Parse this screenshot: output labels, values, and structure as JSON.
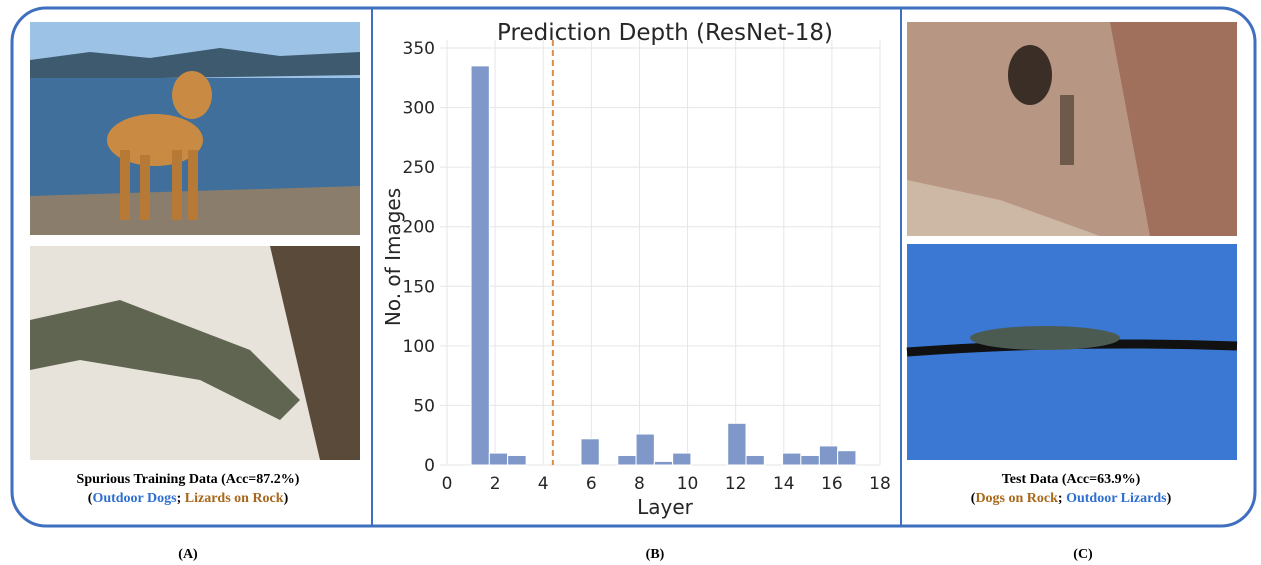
{
  "chart_data": {
    "type": "histogram",
    "title": "Prediction Depth (ResNet-18)",
    "x_label": "Layer",
    "y_label": "No. of Images",
    "bins": [
      1,
      1.76,
      2.52,
      3.29,
      4.05,
      4.81,
      5.57,
      6.33,
      7.1,
      7.86,
      8.62,
      9.38,
      10.14,
      10.9,
      11.67,
      12.43,
      13.19,
      13.95,
      14.71,
      15.48,
      16.24,
      17
    ],
    "values": [
      335,
      10,
      8,
      0,
      0,
      0,
      22,
      0,
      8,
      26,
      3,
      10,
      0,
      0,
      35,
      8,
      0,
      10,
      8,
      16,
      12
    ],
    "color": "#7f97c9",
    "vline": 4.4,
    "vline_color": "#d98e4a",
    "xlim": [
      0,
      18
    ],
    "ylim": [
      0,
      350
    ],
    "xticks": [
      0,
      2,
      4,
      6,
      8,
      10,
      12,
      14,
      16,
      18
    ],
    "yticks": [
      0,
      50,
      100,
      150,
      200,
      250,
      300,
      350
    ],
    "grid": true
  },
  "panels": {
    "left": {
      "title": "Spurious Training Data (Acc=87.2%)",
      "parts": [
        {
          "text": "(",
          "color": "#000000"
        },
        {
          "text": "Outdoor Dogs",
          "color": "#2f6fd0"
        },
        {
          "text": "; ",
          "color": "#000000"
        },
        {
          "text": "Lizards on Rock",
          "color": "#a8671a"
        },
        {
          "text": ")",
          "color": "#000000"
        }
      ],
      "label": "(A)"
    },
    "middle": {
      "label": "(B)"
    },
    "right": {
      "title": "Test Data (Acc=63.9%)",
      "parts": [
        {
          "text": "(",
          "color": "#000000"
        },
        {
          "text": "Dogs on Rock",
          "color": "#a8671a"
        },
        {
          "text": ";  ",
          "color": "#000000"
        },
        {
          "text": "Outdoor Lizards",
          "color": "#2f6fd0"
        },
        {
          "text": ")",
          "color": "#000000"
        }
      ],
      "label": "(C)"
    }
  }
}
